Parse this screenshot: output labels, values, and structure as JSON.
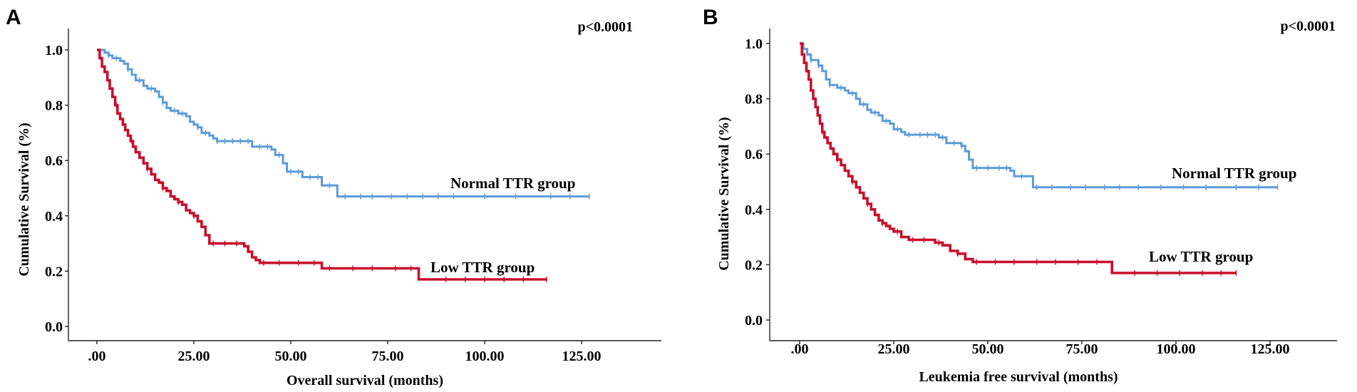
{
  "chart_data": [
    {
      "type": "line",
      "panel_label": "A",
      "xlabel": "Overall survival (months)",
      "ylabel": "Cumulative Survival (%)",
      "annotation": "p<0.0001",
      "x_ticks": [
        ".00",
        "25.00",
        "50.00",
        "75.00",
        "100.00",
        "125.00"
      ],
      "y_ticks": [
        "0.0",
        "0.2",
        "0.4",
        "0.6",
        "0.8",
        "1.0"
      ],
      "xlim": [
        -9,
        148
      ],
      "ylim": [
        -0.05,
        1.06
      ],
      "series": [
        {
          "name": "Normal TTR group",
          "color": "#5b9bd9",
          "steps": [
            [
              0,
              1.0
            ],
            [
              2,
              0.99
            ],
            [
              3,
              0.98
            ],
            [
              4,
              0.97
            ],
            [
              6,
              0.96
            ],
            [
              7,
              0.95
            ],
            [
              8,
              0.93
            ],
            [
              9,
              0.91
            ],
            [
              10,
              0.89
            ],
            [
              12,
              0.87
            ],
            [
              13,
              0.86
            ],
            [
              15,
              0.85
            ],
            [
              16,
              0.83
            ],
            [
              17,
              0.81
            ],
            [
              18,
              0.79
            ],
            [
              19,
              0.78
            ],
            [
              21,
              0.77
            ],
            [
              23,
              0.76
            ],
            [
              24,
              0.74
            ],
            [
              25,
              0.73
            ],
            [
              26,
              0.72
            ],
            [
              27,
              0.7
            ],
            [
              29,
              0.69
            ],
            [
              30,
              0.68
            ],
            [
              31,
              0.67
            ],
            [
              40,
              0.65
            ],
            [
              45,
              0.64
            ],
            [
              46,
              0.62
            ],
            [
              48,
              0.59
            ],
            [
              49,
              0.56
            ],
            [
              53,
              0.54
            ],
            [
              58,
              0.51
            ],
            [
              62,
              0.47
            ],
            [
              127,
              0.47
            ]
          ],
          "censor_x": [
            3,
            5,
            8,
            11,
            14,
            17,
            20,
            22,
            26,
            28,
            31,
            33,
            35,
            37,
            39,
            42,
            44,
            47,
            50,
            52,
            55,
            57,
            60,
            64,
            68,
            71,
            76,
            80,
            84,
            88,
            92,
            100,
            108,
            117,
            122,
            127
          ]
        },
        {
          "name": "Low TTR group",
          "color": "#c8102e",
          "steps": [
            [
              0,
              1.0
            ],
            [
              0.7,
              0.97
            ],
            [
              1.3,
              0.94
            ],
            [
              2,
              0.92
            ],
            [
              2.7,
              0.89
            ],
            [
              3.3,
              0.86
            ],
            [
              4,
              0.83
            ],
            [
              4.7,
              0.8
            ],
            [
              5.3,
              0.77
            ],
            [
              6,
              0.75
            ],
            [
              6.7,
              0.73
            ],
            [
              7.3,
              0.71
            ],
            [
              8,
              0.69
            ],
            [
              8.7,
              0.67
            ],
            [
              9.3,
              0.65
            ],
            [
              10,
              0.63
            ],
            [
              11,
              0.61
            ],
            [
              12,
              0.59
            ],
            [
              13,
              0.57
            ],
            [
              14,
              0.55
            ],
            [
              15,
              0.53
            ],
            [
              16,
              0.52
            ],
            [
              17,
              0.5
            ],
            [
              18,
              0.49
            ],
            [
              19,
              0.47
            ],
            [
              20,
              0.46
            ],
            [
              21,
              0.45
            ],
            [
              22,
              0.44
            ],
            [
              23,
              0.42
            ],
            [
              24,
              0.41
            ],
            [
              25,
              0.4
            ],
            [
              26,
              0.38
            ],
            [
              27,
              0.36
            ],
            [
              28,
              0.33
            ],
            [
              29,
              0.3
            ],
            [
              38,
              0.29
            ],
            [
              39,
              0.27
            ],
            [
              40,
              0.25
            ],
            [
              41,
              0.24
            ],
            [
              42,
              0.23
            ],
            [
              58,
              0.21
            ],
            [
              83,
              0.17
            ],
            [
              116,
              0.17
            ]
          ],
          "censor_x": [
            5,
            9,
            13,
            17,
            21,
            25,
            30,
            33,
            36,
            43,
            47,
            52,
            56,
            60,
            66,
            71,
            77,
            81,
            90,
            95,
            100,
            105,
            110,
            116
          ]
        }
      ]
    },
    {
      "type": "line",
      "panel_label": "B",
      "xlabel": "Leukemia free survival (months)",
      "ylabel": "Cumulative Survival (%)",
      "annotation": "p<0.0001",
      "x_ticks": [
        ".00",
        "25.00",
        "50.00",
        "75.00",
        "100.00",
        "125.00"
      ],
      "y_ticks": [
        "0.0",
        "0.2",
        "0.4",
        "0.6",
        "0.8",
        "1.0"
      ],
      "xlim": [
        -9,
        148
      ],
      "ylim": [
        -0.05,
        1.06
      ],
      "series": [
        {
          "name": "Normal TTR group",
          "color": "#5b9bd9",
          "steps": [
            [
              0,
              1.0
            ],
            [
              1,
              0.98
            ],
            [
              2,
              0.96
            ],
            [
              3,
              0.94
            ],
            [
              5,
              0.92
            ],
            [
              6,
              0.9
            ],
            [
              7,
              0.87
            ],
            [
              8,
              0.85
            ],
            [
              10,
              0.84
            ],
            [
              12,
              0.83
            ],
            [
              13,
              0.82
            ],
            [
              15,
              0.8
            ],
            [
              16,
              0.78
            ],
            [
              18,
              0.76
            ],
            [
              19,
              0.75
            ],
            [
              21,
              0.74
            ],
            [
              22,
              0.72
            ],
            [
              24,
              0.71
            ],
            [
              25,
              0.69
            ],
            [
              27,
              0.68
            ],
            [
              28,
              0.67
            ],
            [
              37,
              0.66
            ],
            [
              39,
              0.64
            ],
            [
              43,
              0.63
            ],
            [
              44,
              0.61
            ],
            [
              45,
              0.58
            ],
            [
              46,
              0.55
            ],
            [
              56,
              0.54
            ],
            [
              57,
              0.52
            ],
            [
              62,
              0.48
            ],
            [
              127,
              0.48
            ]
          ],
          "censor_x": [
            3,
            5,
            8,
            11,
            14,
            17,
            20,
            23,
            26,
            29,
            32,
            34,
            36,
            38,
            41,
            43,
            47,
            50,
            53,
            55,
            59,
            63,
            67,
            72,
            76,
            81,
            85,
            90,
            96,
            102,
            108,
            116,
            122,
            127
          ]
        },
        {
          "name": "Low TTR group",
          "color": "#c8102e",
          "steps": [
            [
              0,
              1.0
            ],
            [
              0.6,
              0.96
            ],
            [
              1.2,
              0.93
            ],
            [
              1.8,
              0.9
            ],
            [
              2.4,
              0.87
            ],
            [
              3,
              0.83
            ],
            [
              3.6,
              0.8
            ],
            [
              4.2,
              0.77
            ],
            [
              4.8,
              0.74
            ],
            [
              5.4,
              0.71
            ],
            [
              6,
              0.68
            ],
            [
              6.6,
              0.66
            ],
            [
              7.4,
              0.64
            ],
            [
              8.2,
              0.62
            ],
            [
              9,
              0.6
            ],
            [
              10,
              0.58
            ],
            [
              11,
              0.56
            ],
            [
              12,
              0.54
            ],
            [
              13,
              0.52
            ],
            [
              14,
              0.5
            ],
            [
              15,
              0.48
            ],
            [
              16,
              0.46
            ],
            [
              17,
              0.44
            ],
            [
              18,
              0.42
            ],
            [
              19,
              0.4
            ],
            [
              20,
              0.38
            ],
            [
              21,
              0.36
            ],
            [
              22,
              0.35
            ],
            [
              23,
              0.34
            ],
            [
              24,
              0.33
            ],
            [
              25,
              0.32
            ],
            [
              27,
              0.3
            ],
            [
              29,
              0.29
            ],
            [
              36,
              0.28
            ],
            [
              38,
              0.27
            ],
            [
              40,
              0.25
            ],
            [
              42,
              0.24
            ],
            [
              44,
              0.22
            ],
            [
              46,
              0.21
            ],
            [
              83,
              0.17
            ],
            [
              116,
              0.17
            ]
          ],
          "censor_x": [
            6,
            10,
            14,
            18,
            22,
            26,
            30,
            33,
            37,
            42,
            47,
            52,
            57,
            63,
            68,
            74,
            79,
            89,
            95,
            101,
            107,
            112,
            116
          ]
        }
      ]
    }
  ]
}
